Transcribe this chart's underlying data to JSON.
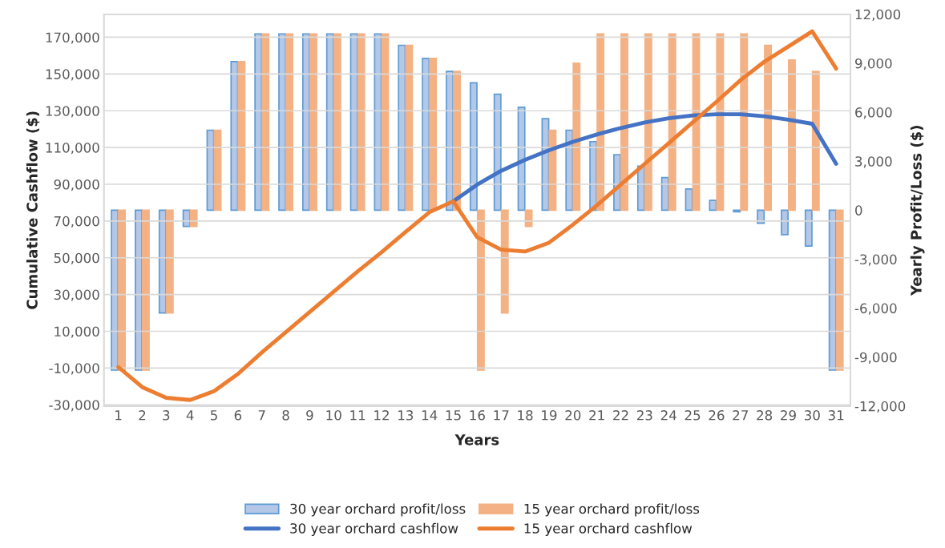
{
  "chart_data": {
    "type": "bar",
    "xlabel": "Years",
    "ylabel": "Cumulative Cashflow ($)",
    "y2label": "Yearly Profit/Loss ($)",
    "categories": [
      "1",
      "2",
      "3",
      "4",
      "5",
      "6",
      "7",
      "8",
      "9",
      "10",
      "11",
      "12",
      "13",
      "14",
      "15",
      "16",
      "17",
      "18",
      "19",
      "20",
      "21",
      "22",
      "23",
      "24",
      "25",
      "26",
      "27",
      "28",
      "29",
      "30",
      "31"
    ],
    "series": [
      {
        "name": "30 year orchard profit/loss",
        "axis": "y2",
        "color": "#b4c7e7",
        "values": [
          -9800,
          -9800,
          -6300,
          -1000,
          4900,
          9100,
          10800,
          10800,
          10800,
          10800,
          10800,
          10800,
          10100,
          9300,
          8500,
          7800,
          7100,
          6300,
          5600,
          4900,
          4200,
          3400,
          2700,
          2000,
          1300,
          600,
          -100,
          -800,
          -1500,
          -2200,
          -9800
        ]
      },
      {
        "name": "15 year orchard profit/loss",
        "axis": "y2",
        "color": "#f4b183",
        "values": [
          -9800,
          -9800,
          -6300,
          -1000,
          4900,
          9100,
          10800,
          10800,
          10800,
          10800,
          10800,
          10800,
          10100,
          9300,
          8500,
          -9800,
          -6300,
          -1000,
          4900,
          9000,
          10800,
          10800,
          10800,
          10800,
          10800,
          10800,
          10800,
          10100,
          9200,
          8500,
          -9800
        ]
      },
      {
        "name": "30 year orchard cashflow",
        "type": "line",
        "color": "#4472c4",
        "values": [
          null,
          null,
          null,
          null,
          null,
          null,
          null,
          null,
          null,
          null,
          null,
          null,
          null,
          null,
          80700,
          89800,
          97300,
          103300,
          108500,
          113100,
          117100,
          120600,
          123600,
          125900,
          127400,
          128100,
          128100,
          127000,
          125100,
          122900,
          101100
        ]
      },
      {
        "name": "15 year orchard cashflow",
        "type": "line",
        "color": "#ed7d31",
        "values": [
          -9500,
          -20400,
          -26200,
          -27400,
          -22600,
          -13200,
          -1500,
          9500,
          20500,
          31500,
          42500,
          53000,
          64000,
          74800,
          80700,
          61200,
          54400,
          53400,
          58200,
          68000,
          78500,
          89800,
          101100,
          112300,
          123600,
          134900,
          146600,
          156700,
          164900,
          173200,
          152900
        ]
      }
    ],
    "ylim": [
      -30700,
      182500
    ],
    "yticks": [
      {
        "value": -30000,
        "label": "-30,000"
      },
      {
        "value": -10000,
        "label": "-10,000"
      },
      {
        "value": 10000,
        "label": "10,000"
      },
      {
        "value": 30000,
        "label": "30,000"
      },
      {
        "value": 50000,
        "label": "50,000"
      },
      {
        "value": 70000,
        "label": "70,000"
      },
      {
        "value": 90000,
        "label": "90,000"
      },
      {
        "value": 110000,
        "label": "110,000"
      },
      {
        "value": 130000,
        "label": "130,000"
      },
      {
        "value": 150000,
        "label": "150,000"
      },
      {
        "value": 170000,
        "label": "170,000"
      }
    ],
    "y2lim": [
      -12000,
      12000
    ],
    "y2ticks": [
      {
        "value": -12000,
        "label": "-12,000"
      },
      {
        "value": -9000,
        "label": "-9,000"
      },
      {
        "value": -6000,
        "label": "-6,000"
      },
      {
        "value": -3000,
        "label": "-3,000"
      },
      0,
      {
        "value": 3000,
        "label": "3,000"
      },
      {
        "value": 6000,
        "label": "6,000"
      },
      {
        "value": 9000,
        "label": "9,000"
      },
      {
        "value": 12000,
        "label": "12,000"
      }
    ],
    "grid": "y",
    "legend": "bottom"
  }
}
